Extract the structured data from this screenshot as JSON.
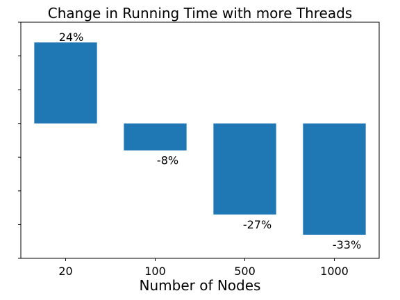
{
  "chart_data": {
    "type": "bar",
    "title": "Change in Running Time with more Threads",
    "xlabel": "Number of Nodes",
    "ylabel": "",
    "categories": [
      "20",
      "100",
      "500",
      "1000"
    ],
    "values": [
      24,
      -8,
      -27,
      -33
    ],
    "data_labels": [
      "24%",
      "-8%",
      "-27%",
      "-33%"
    ],
    "ylim": [
      -40,
      30
    ],
    "grid": false,
    "y_tick_labels_visible": false,
    "bar_color": "#1f77b4"
  }
}
